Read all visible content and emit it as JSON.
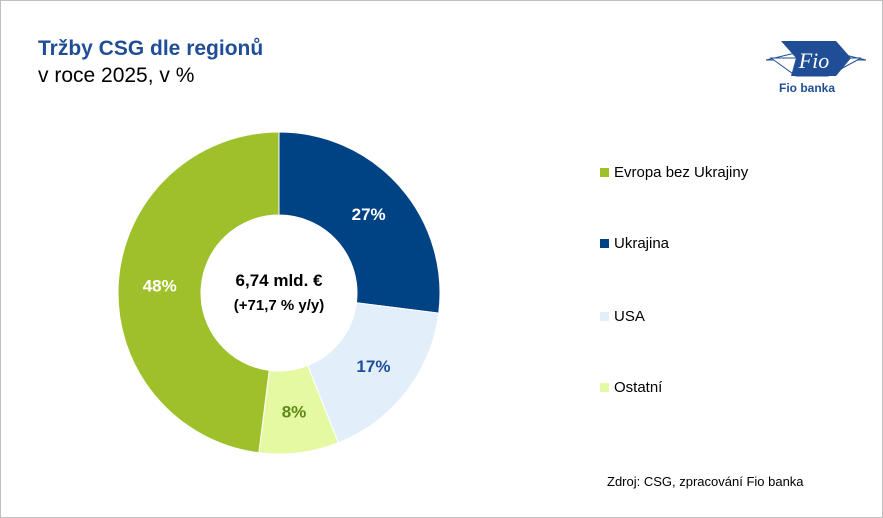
{
  "title": "Tržby CSG dle regionů",
  "subtitle": "v roce 2025, v %",
  "logo": {
    "text": "Fio",
    "caption": "Fio banka"
  },
  "center": {
    "line1": "6,74 mld. €",
    "line2": "(+71,7 % y/y)"
  },
  "source": "Zdroj: CSG, zpracování Fio banka",
  "chart_data": {
    "type": "pie",
    "donut": true,
    "title": "Tržby CSG dle regionů",
    "categories": [
      "Ukrajina",
      "USA",
      "Ostatní",
      "Evropa bez Ukrajiny"
    ],
    "values": [
      27,
      17,
      8,
      48
    ],
    "labels": [
      "27%",
      "17%",
      "8%",
      "48%"
    ],
    "colors": [
      "#004385",
      "#e3eefb",
      "#e5f9a3",
      "#9dc02b"
    ],
    "label_colors": [
      "#ffffff",
      "#1f4e96",
      "#5b8a17",
      "#ffffff"
    ],
    "legend": {
      "placement": "right",
      "entries": [
        {
          "label": "Evropa bez Ukrajiny",
          "color": "#9dc02b"
        },
        {
          "label": "Ukrajina",
          "color": "#004385"
        },
        {
          "label": "USA",
          "color": "#e3eefb"
        },
        {
          "label": "Ostatní",
          "color": "#e5f9a3"
        }
      ]
    }
  }
}
